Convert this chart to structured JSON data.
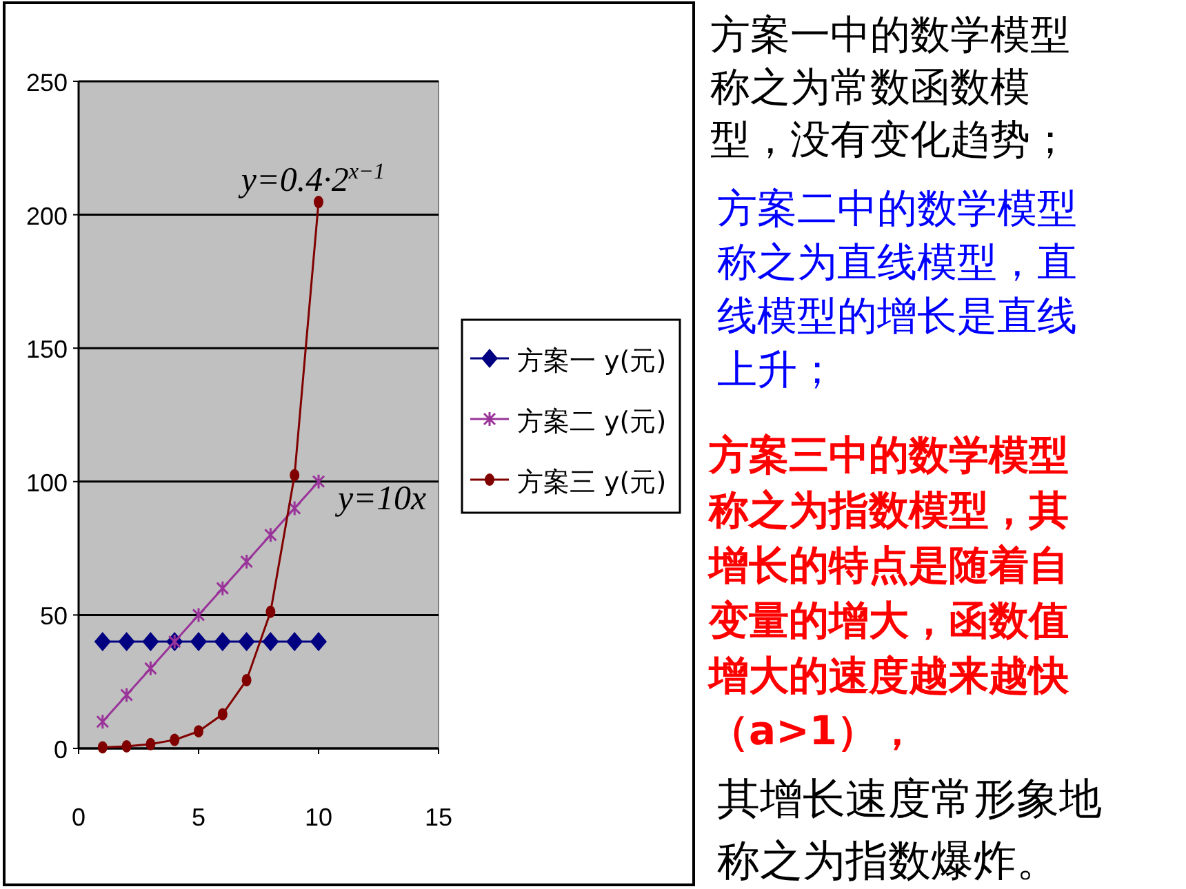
{
  "chart_data": {
    "type": "line",
    "x": [
      1,
      2,
      3,
      4,
      5,
      6,
      7,
      8,
      9,
      10
    ],
    "series": [
      {
        "name": "方案一 y(元)",
        "color": "#000080",
        "marker": "diamond",
        "values": [
          40,
          40,
          40,
          40,
          40,
          40,
          40,
          40,
          40,
          40
        ]
      },
      {
        "name": "方案二 y(元)",
        "color": "#993399",
        "marker": "cross",
        "values": [
          10,
          20,
          30,
          40,
          50,
          60,
          70,
          80,
          90,
          100
        ]
      },
      {
        "name": "方案三 y(元)",
        "color": "#800000",
        "marker": "circle",
        "values": [
          0.4,
          0.8,
          1.6,
          3.2,
          6.4,
          12.8,
          25.6,
          51.2,
          102.4,
          204.8
        ]
      }
    ],
    "xlim": [
      0,
      15
    ],
    "xticks": [
      0,
      5,
      10,
      15
    ],
    "ylim": [
      0,
      250
    ],
    "yticks": [
      0,
      50,
      100,
      150,
      200,
      250
    ],
    "grid": "y",
    "legend": "right",
    "annotations": [
      {
        "text": "y=0.4·2$^{x−1}$",
        "x": 10,
        "y": 204.8
      },
      {
        "text": "y=10x",
        "x": 10,
        "y": 100
      },
      "方案一中的数学模型称之为常数函数模型，没有变化趋势；",
      "方案二中的数学模型称之为直线模型，直线模型的增长是直线上升；",
      "方案三中的数学模型称之为指数模型，其增长的特点是随着自变量的增大，函数值增大的速度越来越快（a>1），",
      "其增长速度常形象地称之为指数爆炸。"
    ]
  }
}
